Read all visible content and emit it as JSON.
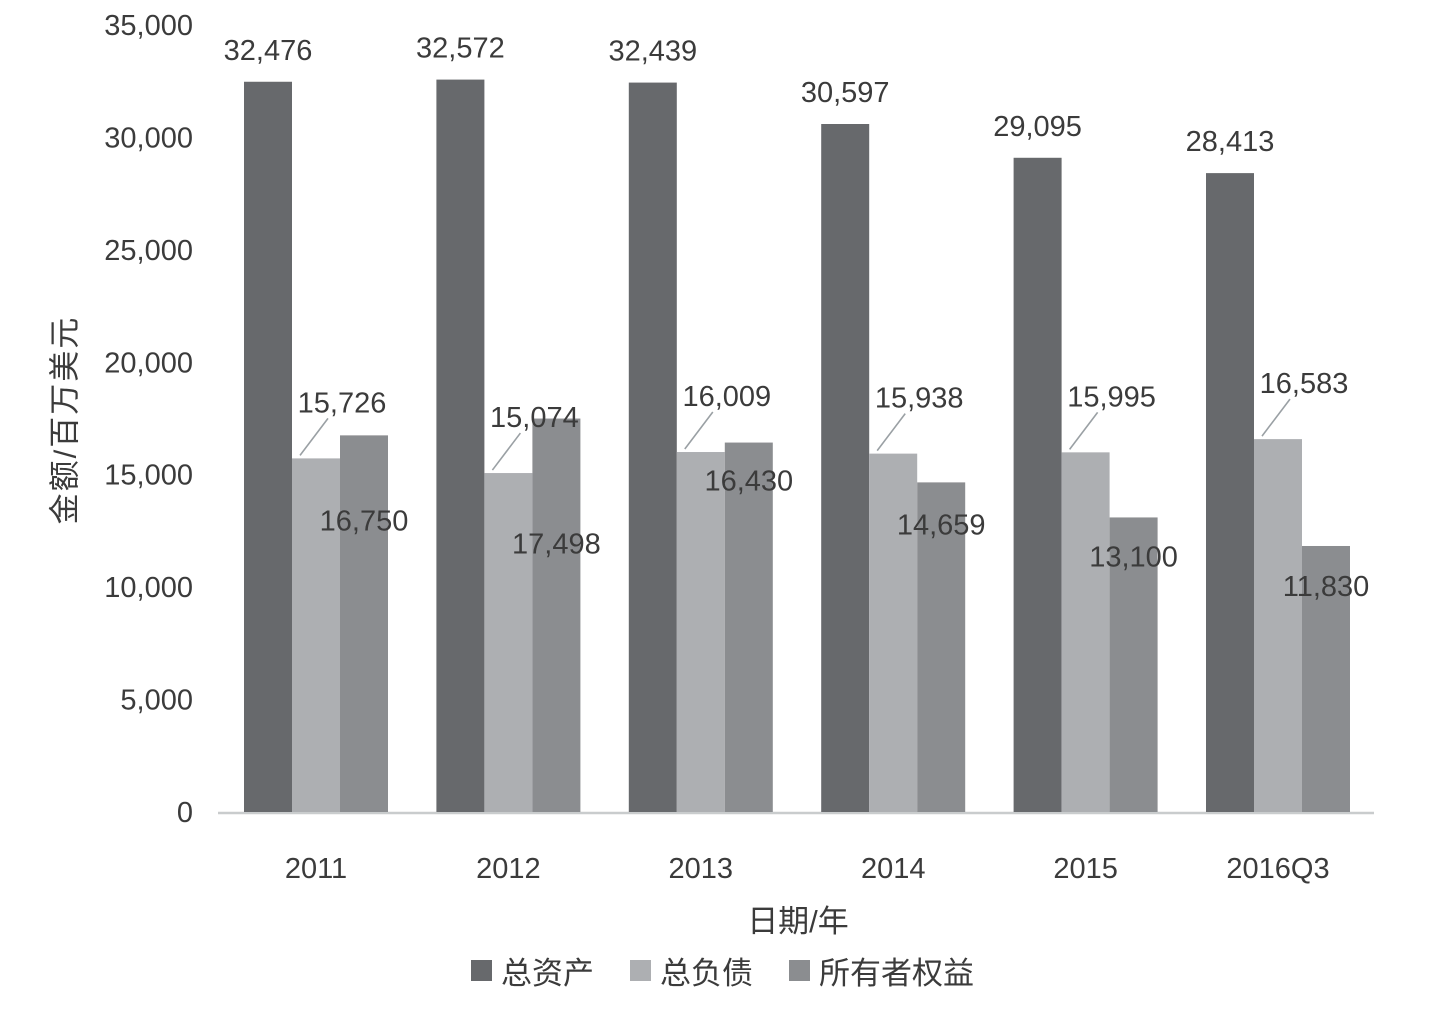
{
  "chart_data": {
    "type": "bar",
    "title": "",
    "xlabel": "日期/年",
    "ylabel": "金额/百万美元",
    "categories": [
      "2011",
      "2012",
      "2013",
      "2014",
      "2015",
      "2016Q3"
    ],
    "series": [
      {
        "name": "总资产",
        "color": "#67696c",
        "values": [
          32476,
          32572,
          32439,
          30597,
          29095,
          28413
        ]
      },
      {
        "name": "总负债",
        "color": "#adafb2",
        "values": [
          15726,
          15074,
          16009,
          15938,
          15995,
          16583
        ]
      },
      {
        "name": "所有者权益",
        "color": "#8b8d90",
        "values": [
          16750,
          17498,
          16430,
          14659,
          13100,
          11830
        ]
      }
    ],
    "ylim": [
      0,
      35000
    ],
    "ytick_step": 5000,
    "ytick_labels": [
      "0",
      "5,000",
      "10,000",
      "15,000",
      "20,000",
      "25,000",
      "30,000",
      "35,000"
    ],
    "grid": false,
    "legend_position": "bottom",
    "axis_line_color": "#c9cccd",
    "label_color": "#3b3b3b"
  }
}
